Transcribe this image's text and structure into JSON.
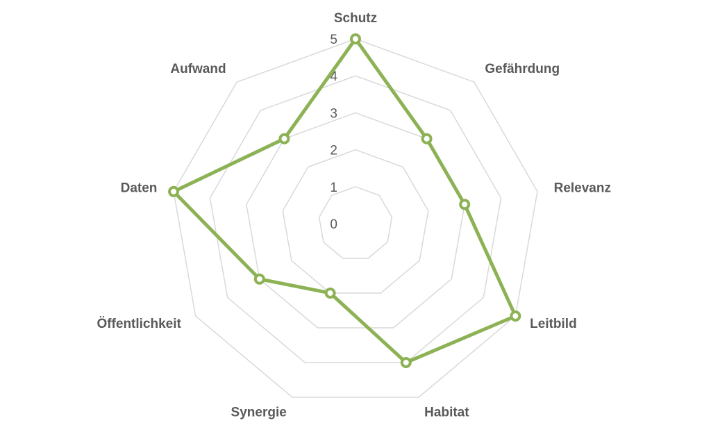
{
  "chart_data": {
    "type": "radar",
    "categories": [
      "Schutz",
      "Gefährdung",
      "Relevanz",
      "Leitbild",
      "Habitat",
      "Synergie",
      "Öffentlichkeit",
      "Daten",
      "Aufwand"
    ],
    "values": [
      5,
      3,
      3,
      5,
      4,
      2,
      3,
      5,
      3
    ],
    "color": "#8db255",
    "rlim": [
      0,
      5
    ],
    "rticks": [
      0,
      1,
      2,
      3,
      4,
      5
    ],
    "grid": true
  }
}
